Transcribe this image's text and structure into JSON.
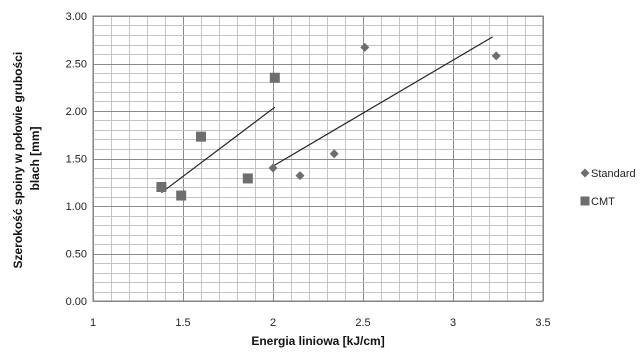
{
  "chart_data": {
    "type": "scatter",
    "xlabel": "Energia liniowa [kJ/cm]",
    "ylabel_lines": [
      "Szerokość spoiny w połowie grubości",
      "blach [mm]"
    ],
    "xlim": [
      1,
      3.5
    ],
    "ylim": [
      0,
      3
    ],
    "x_ticks": [
      "1",
      "1.5",
      "2",
      "2.5",
      "3",
      "3.5"
    ],
    "y_ticks": [
      "0.00",
      "0.50",
      "1.00",
      "1.50",
      "2.00",
      "2.50",
      "3.00"
    ],
    "grid": true,
    "legend_position": "right",
    "series": [
      {
        "name": "Standard",
        "marker": "diamond",
        "color": "#6e6e6e",
        "points": [
          [
            2.0,
            1.4
          ],
          [
            2.15,
            1.32
          ],
          [
            2.34,
            1.55
          ],
          [
            2.51,
            2.67
          ],
          [
            3.24,
            2.58
          ]
        ],
        "trendline": [
          [
            2.0,
            1.42
          ],
          [
            3.22,
            2.78
          ]
        ]
      },
      {
        "name": "CMT",
        "marker": "square",
        "color": "#6e6e6e",
        "points": [
          [
            1.38,
            1.2
          ],
          [
            1.49,
            1.11
          ],
          [
            1.6,
            1.73
          ],
          [
            1.86,
            1.29
          ],
          [
            2.01,
            2.35
          ]
        ],
        "trendline": [
          [
            1.38,
            1.14
          ],
          [
            2.01,
            2.04
          ]
        ]
      }
    ]
  }
}
